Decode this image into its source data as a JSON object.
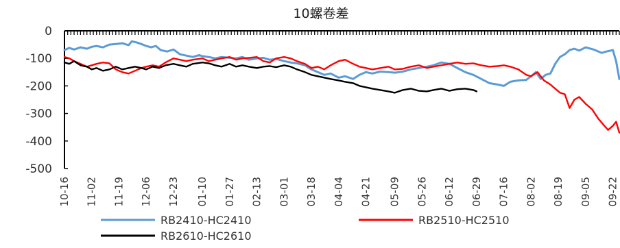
{
  "chart_data": {
    "type": "line",
    "title": "10螺卷差",
    "xlabel": "",
    "ylabel": "",
    "ylim": [
      -500,
      0
    ],
    "yticks": [
      0,
      -100,
      -200,
      -300,
      -400,
      -500
    ],
    "xlim": [
      0,
      346
    ],
    "x_ticks": [
      {
        "label": "10-16",
        "day": 0
      },
      {
        "label": "11-02",
        "day": 17
      },
      {
        "label": "11-19",
        "day": 34
      },
      {
        "label": "12-06",
        "day": 51
      },
      {
        "label": "12-23",
        "day": 68
      },
      {
        "label": "01-10",
        "day": 86
      },
      {
        "label": "01-27",
        "day": 103
      },
      {
        "label": "02-13",
        "day": 120
      },
      {
        "label": "03-01",
        "day": 137
      },
      {
        "label": "03-18",
        "day": 154
      },
      {
        "label": "04-04",
        "day": 171
      },
      {
        "label": "04-21",
        "day": 188
      },
      {
        "label": "05-09",
        "day": 206
      },
      {
        "label": "05-26",
        "day": 223
      },
      {
        "label": "06-12",
        "day": 240
      },
      {
        "label": "06-29",
        "day": 257
      },
      {
        "label": "07-16",
        "day": 274
      },
      {
        "label": "08-02",
        "day": 291
      },
      {
        "label": "08-19",
        "day": 308
      },
      {
        "label": "09-05",
        "day": 325
      },
      {
        "label": "09-22",
        "day": 342
      }
    ],
    "legend_position": "bottom",
    "grid": false,
    "series": [
      {
        "name": "RB2410-HC2410",
        "color": "#5b9bd5",
        "x": [
          0,
          3,
          6,
          10,
          14,
          17,
          20,
          24,
          28,
          32,
          36,
          40,
          42,
          45,
          48,
          51,
          54,
          57,
          60,
          64,
          68,
          72,
          76,
          80,
          84,
          86,
          90,
          94,
          98,
          103,
          107,
          111,
          115,
          120,
          124,
          128,
          132,
          137,
          141,
          145,
          150,
          154,
          158,
          162,
          166,
          171,
          175,
          180,
          184,
          188,
          192,
          197,
          202,
          206,
          211,
          216,
          221,
          226,
          230,
          235,
          240,
          245,
          250,
          255,
          260,
          265,
          270,
          274,
          278,
          283,
          288,
          291,
          294,
          297,
          300,
          303,
          306,
          309,
          312,
          315,
          318,
          321,
          325,
          330,
          335,
          338,
          342,
          344,
          346
        ],
        "y": [
          -70,
          -62,
          -68,
          -60,
          -65,
          -58,
          -55,
          -60,
          -50,
          -48,
          -45,
          -52,
          -38,
          -42,
          -48,
          -55,
          -60,
          -55,
          -70,
          -75,
          -68,
          -85,
          -90,
          -95,
          -88,
          -92,
          -95,
          -100,
          -95,
          -98,
          -100,
          -95,
          -105,
          -100,
          -98,
          -105,
          -102,
          -110,
          -115,
          -118,
          -125,
          -140,
          -150,
          -160,
          -155,
          -170,
          -165,
          -175,
          -160,
          -150,
          -155,
          -148,
          -150,
          -152,
          -148,
          -140,
          -135,
          -130,
          -125,
          -115,
          -120,
          -135,
          -150,
          -160,
          -175,
          -190,
          -195,
          -200,
          -185,
          -180,
          -178,
          -165,
          -150,
          -175,
          -160,
          -155,
          -120,
          -95,
          -85,
          -70,
          -65,
          -72,
          -60,
          -68,
          -80,
          -75,
          -70,
          -110,
          -175
        ]
      },
      {
        "name": "RB2510-HC2510",
        "color": "#ff0000",
        "x": [
          0,
          3,
          6,
          10,
          14,
          17,
          20,
          24,
          28,
          32,
          36,
          40,
          44,
          48,
          51,
          55,
          59,
          63,
          68,
          72,
          76,
          80,
          86,
          90,
          94,
          98,
          103,
          107,
          111,
          115,
          120,
          124,
          128,
          132,
          137,
          141,
          145,
          150,
          154,
          158,
          162,
          166,
          171,
          175,
          180,
          184,
          188,
          192,
          197,
          202,
          206,
          211,
          216,
          221,
          226,
          230,
          235,
          240,
          245,
          250,
          255,
          260,
          265,
          270,
          274,
          278,
          283,
          288,
          291,
          295,
          299,
          303,
          306,
          309,
          312,
          315,
          318,
          321,
          325,
          329,
          333,
          336,
          339,
          342,
          344,
          346
        ],
        "y": [
          -95,
          -100,
          -110,
          -120,
          -130,
          -125,
          -120,
          -115,
          -118,
          -140,
          -150,
          -155,
          -145,
          -135,
          -130,
          -125,
          -130,
          -115,
          -100,
          -105,
          -110,
          -105,
          -100,
          -110,
          -105,
          -100,
          -95,
          -105,
          -100,
          -98,
          -95,
          -110,
          -115,
          -100,
          -95,
          -100,
          -110,
          -120,
          -135,
          -130,
          -140,
          -125,
          -110,
          -105,
          -120,
          -130,
          -135,
          -140,
          -135,
          -130,
          -140,
          -138,
          -130,
          -125,
          -135,
          -130,
          -125,
          -120,
          -115,
          -120,
          -118,
          -125,
          -130,
          -128,
          -125,
          -130,
          -140,
          -160,
          -165,
          -150,
          -180,
          -195,
          -210,
          -225,
          -230,
          -280,
          -250,
          -240,
          -265,
          -285,
          -320,
          -340,
          -360,
          -345,
          -330,
          -370
        ]
      },
      {
        "name": "RB2610-HC2610",
        "color": "#000000",
        "x": [
          0,
          3,
          6,
          10,
          14,
          17,
          20,
          24,
          28,
          32,
          36,
          40,
          44,
          48,
          51,
          55,
          59,
          63,
          68,
          72,
          76,
          80,
          86,
          90,
          94,
          98,
          103,
          107,
          111,
          115,
          120,
          124,
          128,
          132,
          137,
          141,
          145,
          150,
          154,
          158,
          162,
          166,
          171,
          175,
          180,
          184,
          188,
          192,
          197,
          202,
          206,
          211,
          216,
          221,
          226,
          230,
          235,
          240,
          245,
          250,
          255,
          257
        ],
        "y": [
          -115,
          -120,
          -110,
          -125,
          -130,
          -140,
          -135,
          -145,
          -140,
          -130,
          -140,
          -135,
          -130,
          -135,
          -140,
          -130,
          -135,
          -125,
          -120,
          -125,
          -130,
          -120,
          -115,
          -118,
          -125,
          -130,
          -120,
          -130,
          -125,
          -130,
          -135,
          -130,
          -128,
          -132,
          -125,
          -130,
          -140,
          -150,
          -160,
          -165,
          -170,
          -175,
          -180,
          -185,
          -190,
          -200,
          -205,
          -210,
          -215,
          -220,
          -225,
          -215,
          -210,
          -218,
          -220,
          -215,
          -210,
          -218,
          -212,
          -210,
          -215,
          -220
        ]
      }
    ]
  }
}
